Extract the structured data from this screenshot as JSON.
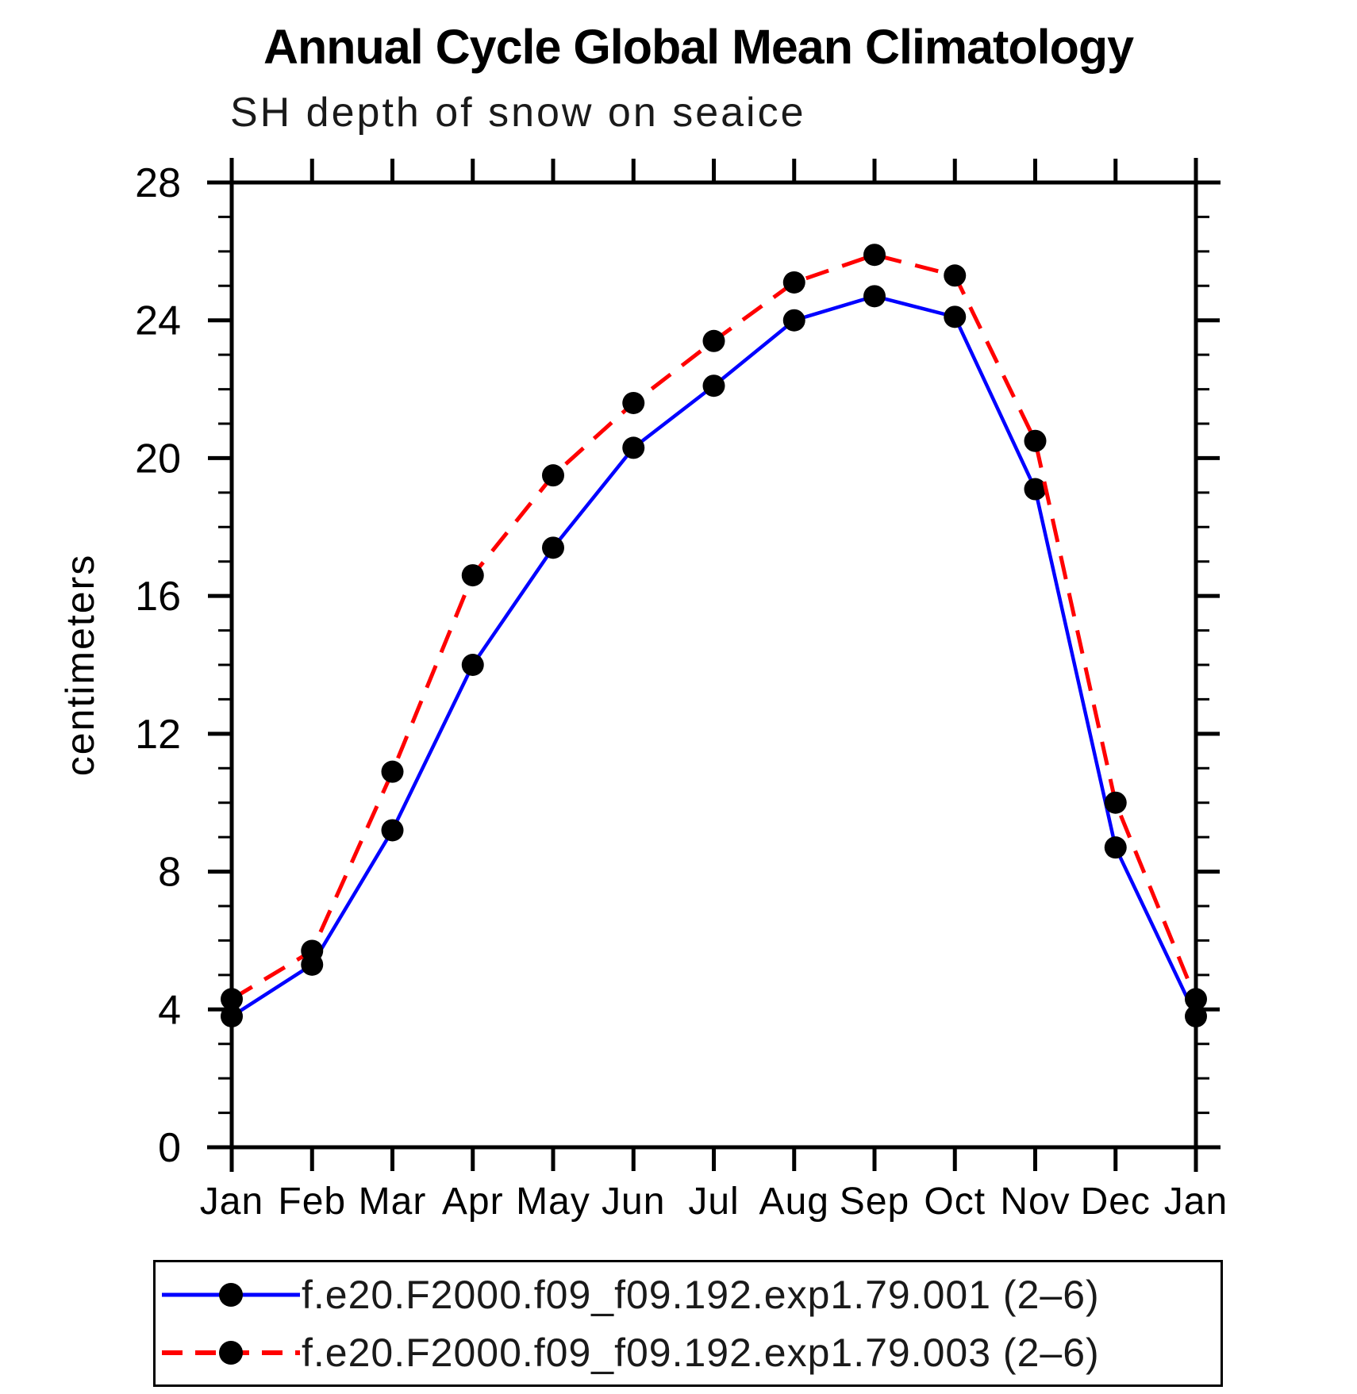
{
  "title": "Annual Cycle Global Mean Climatology",
  "subtitle": "SH depth of snow on seaice",
  "chart_data": {
    "type": "line",
    "title": "Annual Cycle Global Mean Climatology",
    "subtitle": "SH depth of snow on seaice",
    "ylabel": "centimeters",
    "xlabel": "",
    "categories": [
      "Jan",
      "Feb",
      "Mar",
      "Apr",
      "May",
      "Jun",
      "Jul",
      "Aug",
      "Sep",
      "Oct",
      "Nov",
      "Dec",
      "Jan"
    ],
    "series": [
      {
        "name": "f.e20.F2000.f09_f09.192.exp1.79.001 (2–6)",
        "color": "#0000ff",
        "line_style": "solid",
        "marker": "circle",
        "marker_color": "#000000",
        "values": [
          3.8,
          5.3,
          9.2,
          14.0,
          17.4,
          20.3,
          22.1,
          24.0,
          24.7,
          24.1,
          19.1,
          8.7,
          3.8
        ]
      },
      {
        "name": "f.e20.F2000.f09_f09.192.exp1.79.003 (2–6)",
        "color": "#ff0000",
        "line_style": "dashed",
        "marker": "circle",
        "marker_color": "#000000",
        "values": [
          4.3,
          5.7,
          10.9,
          16.6,
          19.5,
          21.6,
          23.4,
          25.1,
          25.9,
          25.3,
          20.5,
          10.0,
          4.3
        ]
      }
    ],
    "ylim": [
      0,
      28
    ],
    "ytick_major": 4,
    "ytick_minor": 1,
    "grid": false,
    "legend_position": "bottom"
  }
}
